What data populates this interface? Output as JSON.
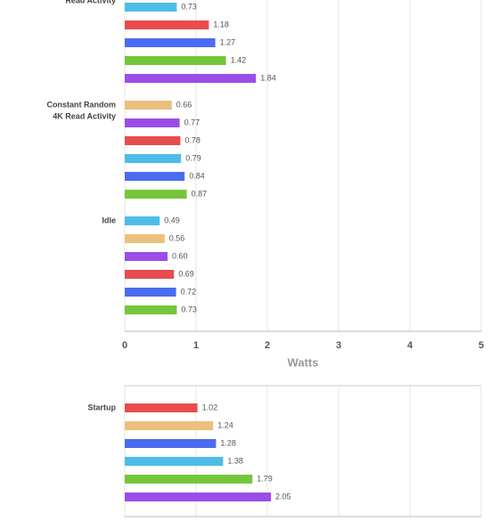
{
  "chart_data": [
    {
      "type": "bar",
      "orientation": "horizontal",
      "x_label": "Watts",
      "xlim": [
        0,
        5
      ],
      "xticks": [
        0,
        1,
        2,
        3,
        4,
        5
      ],
      "show_tick_labels": true,
      "grid": true,
      "groups": [
        {
          "label": [
            "Read Activity"
          ],
          "values": [
            0.73,
            1.18,
            1.27,
            1.42,
            1.84
          ],
          "value_labels": [
            "0.73",
            "1.18",
            "1.27",
            "1.42",
            "1.84"
          ],
          "colors": [
            "#4dbde8",
            "#e84c4f",
            "#4a6cf0",
            "#74c63a",
            "#9a4de8"
          ]
        },
        {
          "label": [
            "Constant Random",
            "4K Read Activity"
          ],
          "values": [
            0.66,
            0.77,
            0.78,
            0.79,
            0.84,
            0.87
          ],
          "value_labels": [
            "0.66",
            "0.77",
            "0.78",
            "0.79",
            "0.84",
            "0.87"
          ],
          "colors": [
            "#ecc07c",
            "#9a4de8",
            "#e84c4f",
            "#4dbde8",
            "#4a6cf0",
            "#74c63a"
          ]
        },
        {
          "label": [
            "Idle"
          ],
          "values": [
            0.49,
            0.56,
            0.6,
            0.69,
            0.72,
            0.73
          ],
          "value_labels": [
            "0.49",
            "0.56",
            "0.60",
            "0.69",
            "0.72",
            "0.73"
          ],
          "colors": [
            "#4dbde8",
            "#ecc07c",
            "#9a4de8",
            "#e84c4f",
            "#4a6cf0",
            "#74c63a"
          ]
        }
      ]
    },
    {
      "type": "bar",
      "orientation": "horizontal",
      "xlim": [
        0,
        5
      ],
      "xticks": [
        0,
        1,
        2,
        3,
        4,
        5
      ],
      "show_tick_labels": false,
      "grid": true,
      "groups": [
        {
          "label": [
            "Startup"
          ],
          "values": [
            1.02,
            1.24,
            1.28,
            1.38,
            1.79,
            2.05
          ],
          "value_labels": [
            "1.02",
            "1.24",
            "1.28",
            "1.38",
            "1.79",
            "2.05"
          ],
          "colors": [
            "#e84c4f",
            "#ecc07c",
            "#4a6cf0",
            "#4dbde8",
            "#74c63a",
            "#9a4de8"
          ]
        }
      ]
    }
  ]
}
